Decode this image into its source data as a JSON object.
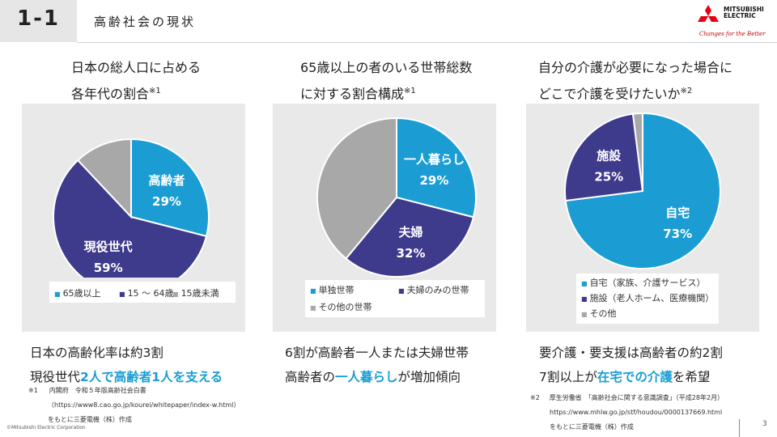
{
  "header": {
    "section_number": "1-1",
    "title": "高齢社会の現状",
    "logo_name": "MITSUBISHI ELECTRIC",
    "logo_slogan": "Changes for the Better"
  },
  "colors": {
    "blue": "#1b9dd4",
    "purple": "#3e3a8c",
    "gray": "#a8a8a8",
    "panel": "#e9e9e9",
    "highlight": "#1b9dd4"
  },
  "chart_data": [
    {
      "type": "pie",
      "title_lines": [
        "日本の総人口に占める",
        "各年代の割合"
      ],
      "title_note": "※1",
      "slices": [
        {
          "name": "65歳以上",
          "label": "高齢者",
          "value": 29,
          "value_label": "29%",
          "color": "#1b9dd4"
        },
        {
          "name": "15 ～ 64歳",
          "label": "現役世代",
          "value": 59,
          "value_label": "59%",
          "color": "#3e3a8c"
        },
        {
          "name": "15歳未満",
          "label": "",
          "value": 12,
          "value_label": "",
          "color": "#a8a8a8"
        }
      ],
      "legend": [
        "65歳以上",
        "15 ～ 64歳",
        "15歳未満"
      ]
    },
    {
      "type": "pie",
      "title_lines": [
        "65歳以上の者のいる世帯総数",
        "に対する割合構成"
      ],
      "title_note": "※1",
      "slices": [
        {
          "name": "単独世帯",
          "label": "一人暮らし",
          "value": 29,
          "value_label": "29%",
          "color": "#1b9dd4"
        },
        {
          "name": "夫婦のみの世帯",
          "label": "夫婦",
          "value": 32,
          "value_label": "32%",
          "color": "#3e3a8c"
        },
        {
          "name": "その他の世帯",
          "label": "",
          "value": 39,
          "value_label": "",
          "color": "#a8a8a8"
        }
      ],
      "legend": [
        "単独世帯",
        "夫婦のみの世帯",
        "その他の世帯"
      ]
    },
    {
      "type": "pie",
      "title_lines": [
        "自分の介護が必要になった場合に",
        "どこで介護を受けたいか"
      ],
      "title_note": "※2",
      "slices": [
        {
          "name": "自宅（家族、介護サービス）",
          "label": "自宅",
          "value": 73,
          "value_label": "73%",
          "color": "#1b9dd4"
        },
        {
          "name": "施設（老人ホーム、医療機関）",
          "label": "施設",
          "value": 25,
          "value_label": "25%",
          "color": "#3e3a8c"
        },
        {
          "name": "その他",
          "label": "",
          "value": 2,
          "value_label": "",
          "color": "#a8a8a8"
        }
      ],
      "legend": [
        "自宅（家族、介護サービス）",
        "施設（老人ホーム、医療機関）",
        "その他"
      ]
    }
  ],
  "summaries": [
    {
      "line1": "日本の高齢化率は約3割",
      "line2_pre": "現役世代",
      "line2_hl": "2人で高齢者1人を支える",
      "line2_post": ""
    },
    {
      "line1": "6割が高齢者一人または夫婦世帯",
      "line2_pre": "高齢者の",
      "line2_hl": "一人暮らし",
      "line2_post": "が増加傾向"
    },
    {
      "line1": "要介護・要支援は高齢者の約2割",
      "line2_pre": "7割以上が",
      "line2_hl": "在宅での介護",
      "line2_post": "を希望"
    }
  ],
  "footnotes": {
    "fn1_mark": "※1",
    "fn1_source": "内閣府　令和５年版高齢社会白書",
    "fn1_url": "（https://www8.cao.go.jp/kourei/whitepaper/index-w.html）",
    "fn1_made": "をもとに三菱電機（株）作成",
    "fn2_mark": "※2",
    "fn2_source": "厚生労働省　「高齢社会に関する意識調査」（平成28年2月）",
    "fn2_url": "https://www.mhlw.go.jp/stf/houdou/0000137669.html",
    "fn2_made": "をもとに三菱電機（株）作成"
  },
  "copyright": "©Mitsubishi Electric Corporation",
  "page_number": "3"
}
